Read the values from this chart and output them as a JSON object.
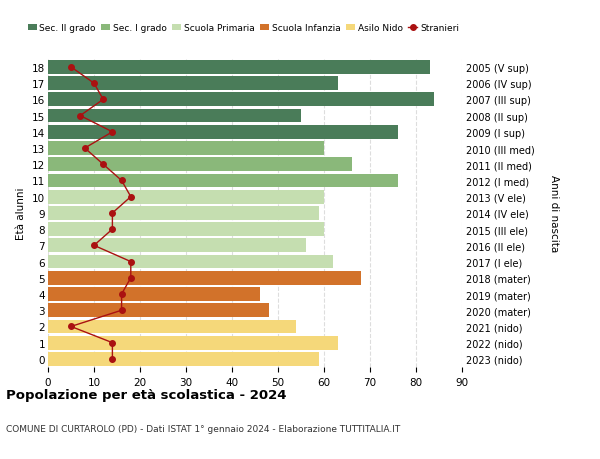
{
  "ages": [
    18,
    17,
    16,
    15,
    14,
    13,
    12,
    11,
    10,
    9,
    8,
    7,
    6,
    5,
    4,
    3,
    2,
    1,
    0
  ],
  "right_labels": [
    "2005 (V sup)",
    "2006 (IV sup)",
    "2007 (III sup)",
    "2008 (II sup)",
    "2009 (I sup)",
    "2010 (III med)",
    "2011 (II med)",
    "2012 (I med)",
    "2013 (V ele)",
    "2014 (IV ele)",
    "2015 (III ele)",
    "2016 (II ele)",
    "2017 (I ele)",
    "2018 (mater)",
    "2019 (mater)",
    "2020 (mater)",
    "2021 (nido)",
    "2022 (nido)",
    "2023 (nido)"
  ],
  "bar_values": [
    83,
    63,
    84,
    55,
    76,
    60,
    66,
    76,
    60,
    59,
    60,
    56,
    62,
    68,
    46,
    48,
    54,
    63,
    59
  ],
  "bar_colors": [
    "#4a7c59",
    "#4a7c59",
    "#4a7c59",
    "#4a7c59",
    "#4a7c59",
    "#8ab87a",
    "#8ab87a",
    "#8ab87a",
    "#c5deb0",
    "#c5deb0",
    "#c5deb0",
    "#c5deb0",
    "#c5deb0",
    "#d2722a",
    "#d2722a",
    "#d2722a",
    "#f5d87a",
    "#f5d87a",
    "#f5d87a"
  ],
  "stranieri": [
    5,
    10,
    12,
    7,
    14,
    8,
    12,
    16,
    18,
    14,
    14,
    10,
    18,
    18,
    16,
    16,
    5,
    14,
    14
  ],
  "title": "Popolazione per età scolastica - 2024",
  "subtitle": "COMUNE DI CURTAROLO (PD) - Dati ISTAT 1° gennaio 2024 - Elaborazione TUTTITALIA.IT",
  "ylabel": "Età alunni",
  "right_ylabel": "Anni di nascita",
  "xlabel_ticks": [
    0,
    10,
    20,
    30,
    40,
    50,
    60,
    70,
    80,
    90
  ],
  "xlim": [
    0,
    90
  ],
  "legend_labels": [
    "Sec. II grado",
    "Sec. I grado",
    "Scuola Primaria",
    "Scuola Infanzia",
    "Asilo Nido",
    "Stranieri"
  ],
  "legend_colors": [
    "#4a7c59",
    "#8ab87a",
    "#c5deb0",
    "#d2722a",
    "#f5d87a",
    "#aa1111"
  ],
  "stranieri_color": "#aa1111",
  "grid_color": "#dddddd",
  "bg_color": "#ffffff"
}
